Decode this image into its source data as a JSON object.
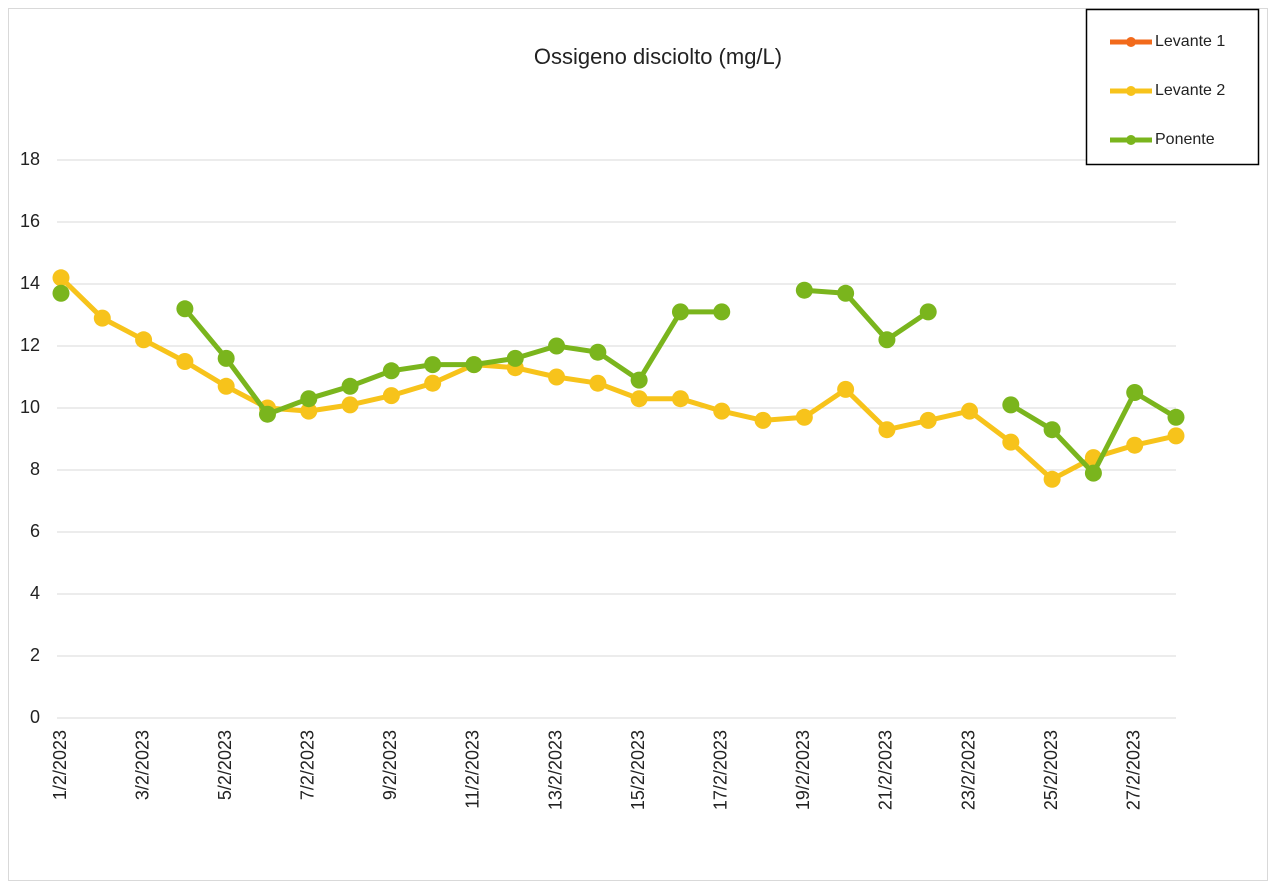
{
  "chart_data": {
    "type": "line",
    "title": "Ossigeno disciolto (mg/L)",
    "categories": [
      "1/2/2023",
      null,
      "3/2/2023",
      null,
      "5/2/2023",
      null,
      "7/2/2023",
      null,
      "9/2/2023",
      null,
      "11/2/2023",
      null,
      "13/2/2023",
      null,
      "15/2/2023",
      null,
      "17/2/2023",
      null,
      "19/2/2023",
      null,
      "21/2/2023",
      null,
      "23/2/2023",
      null,
      "25/2/2023",
      null,
      "27/2/2023",
      null
    ],
    "series": [
      {
        "name": "Levante 1",
        "color": "#f26a1b",
        "values": [
          null,
          null,
          null,
          null,
          null,
          null,
          null,
          null,
          null,
          null,
          null,
          null,
          null,
          null,
          null,
          null,
          null,
          null,
          null,
          null,
          null,
          null,
          null,
          null,
          null,
          null,
          null,
          null
        ]
      },
      {
        "name": "Levante 2",
        "color": "#f7c31b",
        "values": [
          14.2,
          12.9,
          12.2,
          11.5,
          10.7,
          10.0,
          9.9,
          10.1,
          10.4,
          10.8,
          11.4,
          11.3,
          11.0,
          10.8,
          10.3,
          10.3,
          9.9,
          9.6,
          9.7,
          10.6,
          9.3,
          9.6,
          9.9,
          8.9,
          7.7,
          8.4,
          8.8,
          9.1
        ]
      },
      {
        "name": "Ponente",
        "color": "#7ab51d",
        "values": [
          13.7,
          null,
          null,
          13.2,
          11.6,
          9.8,
          10.3,
          10.7,
          11.2,
          11.4,
          11.4,
          11.6,
          12.0,
          11.8,
          10.9,
          13.1,
          13.1,
          null,
          13.8,
          13.7,
          12.2,
          13.1,
          null,
          10.1,
          9.3,
          7.9,
          10.5,
          9.7
        ]
      }
    ],
    "ylim": [
      0,
      18
    ],
    "yticks": [
      0,
      2,
      4,
      6,
      8,
      10,
      12,
      14,
      16,
      18
    ],
    "grid": true,
    "legend": "top-right"
  }
}
